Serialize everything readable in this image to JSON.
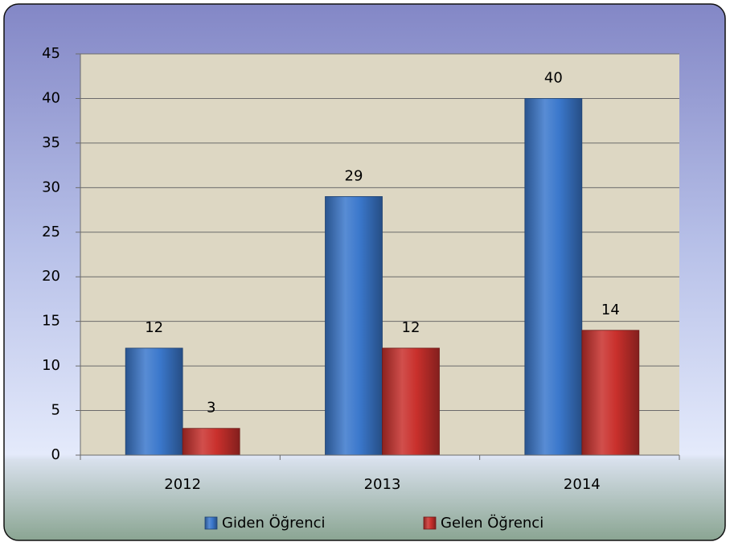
{
  "chart_data": {
    "type": "bar",
    "categories": [
      "2012",
      "2013",
      "2014"
    ],
    "series": [
      {
        "name": "Giden Öğrenci",
        "color": "#3b78cc",
        "values": [
          12,
          29,
          40
        ]
      },
      {
        "name": "Gelen Öğrenci",
        "color": "#c9302c",
        "values": [
          3,
          12,
          14
        ]
      }
    ],
    "ylim": [
      0,
      45
    ],
    "yticks": [
      0,
      5,
      10,
      15,
      20,
      25,
      30,
      35,
      40,
      45
    ],
    "grid": true,
    "legend": "bottom"
  }
}
